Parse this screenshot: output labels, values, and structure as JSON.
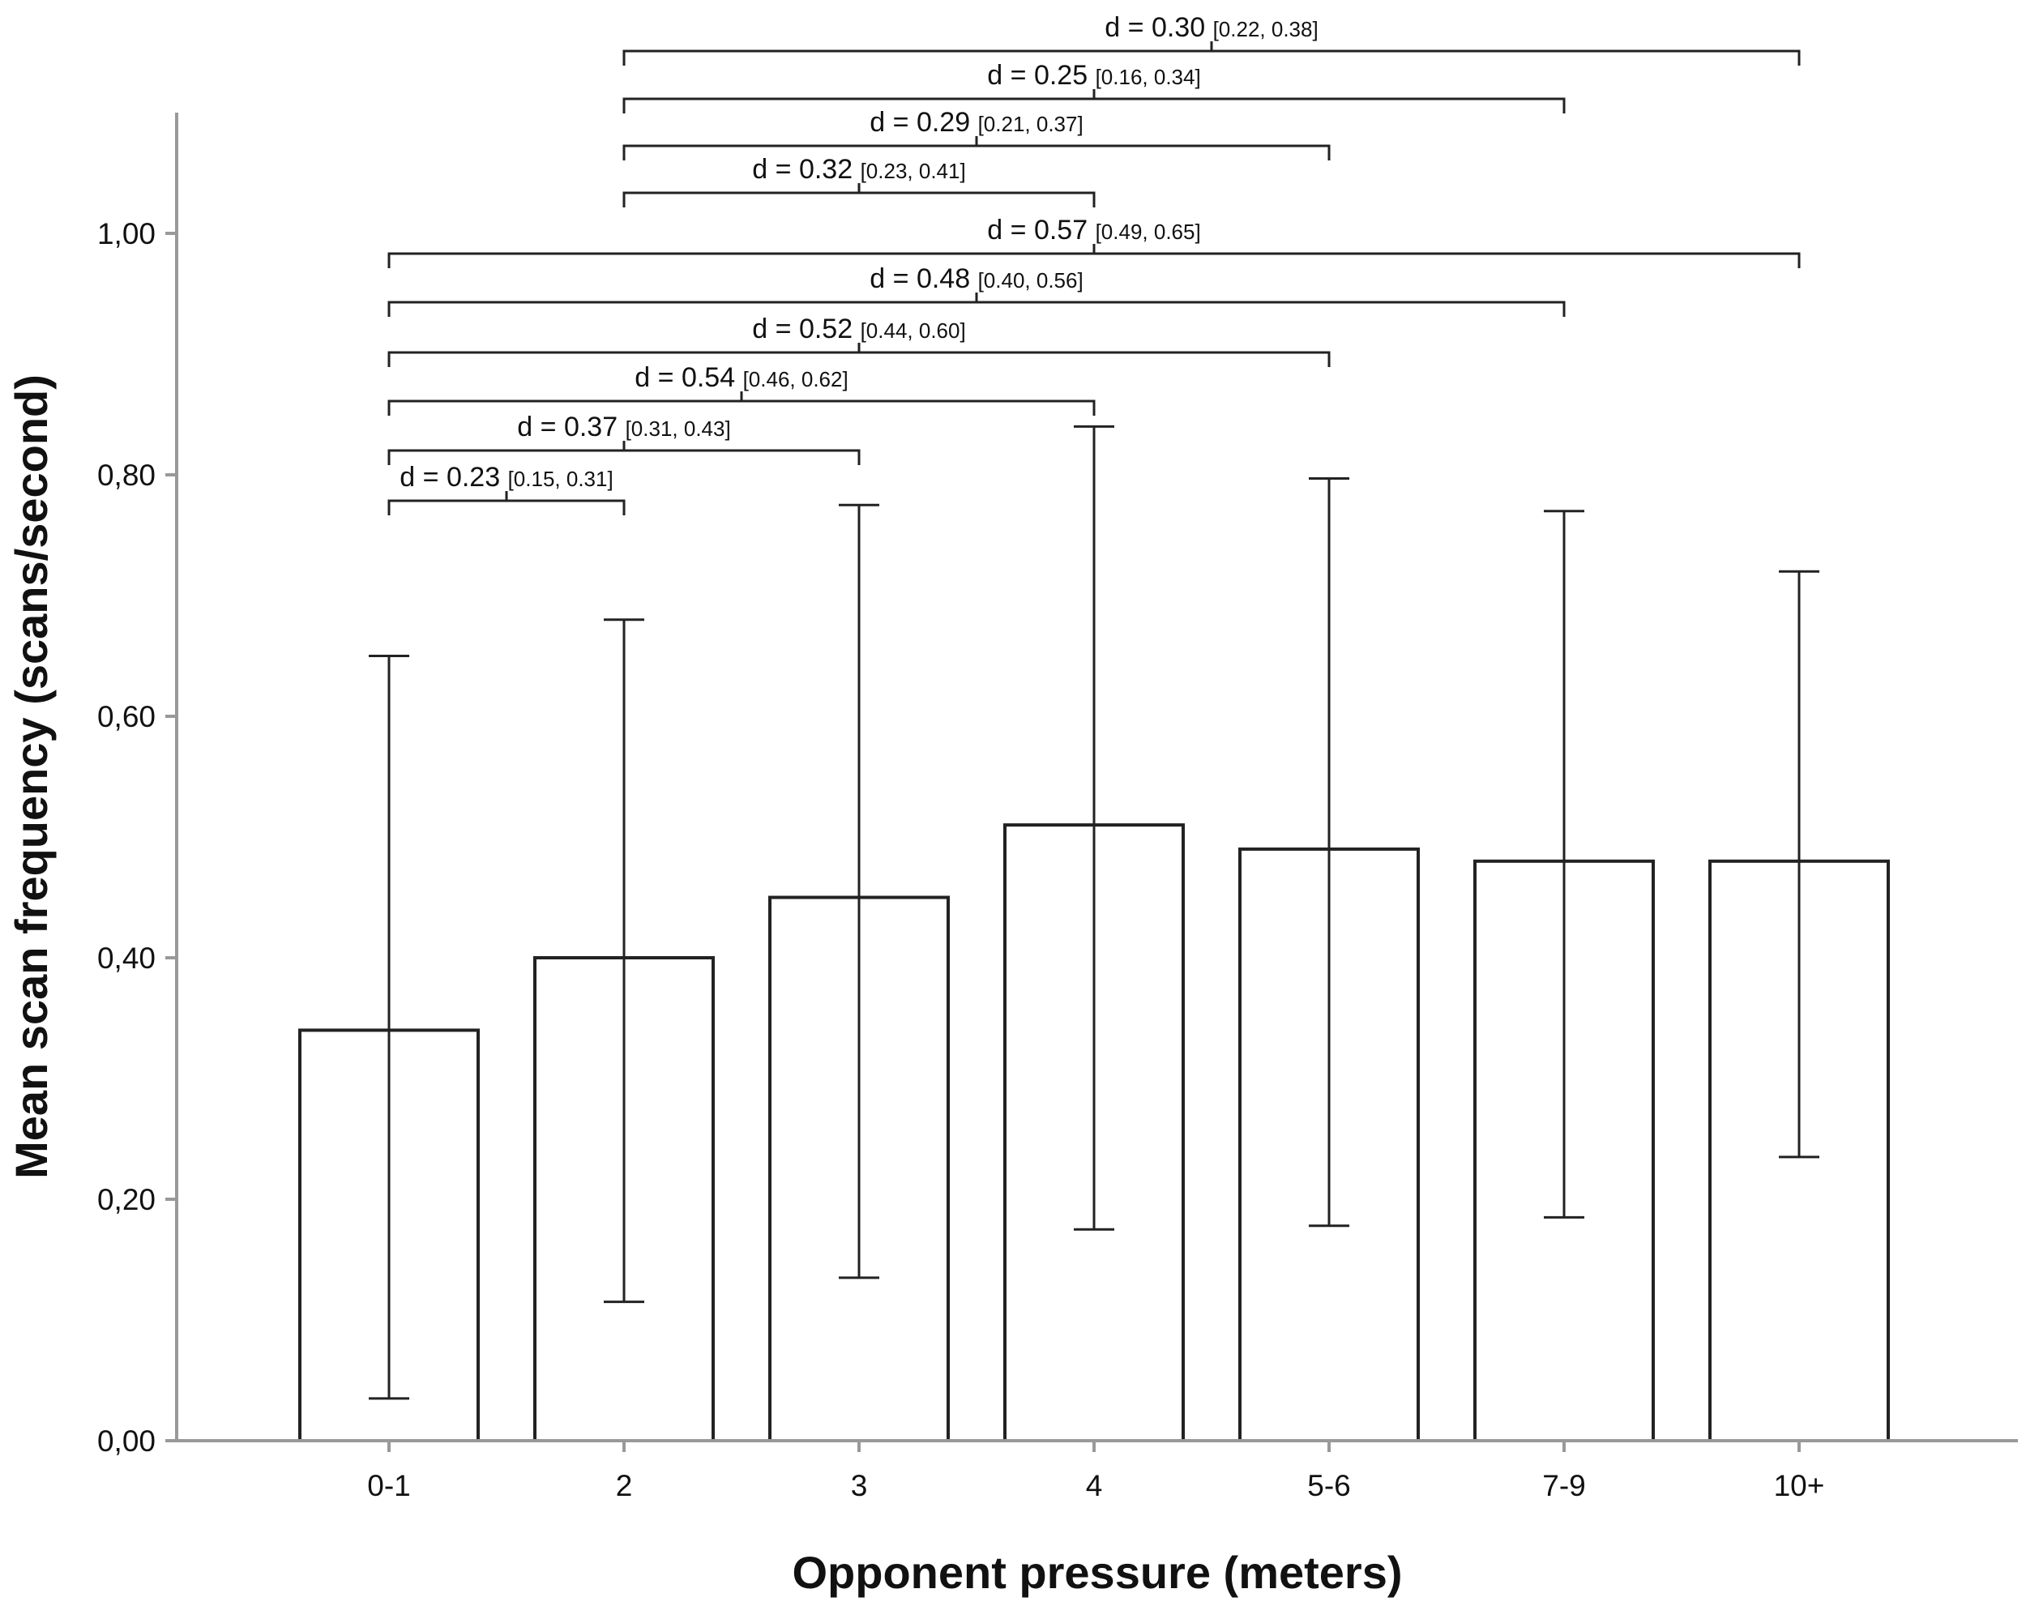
{
  "chart_data": {
    "type": "bar",
    "title": "",
    "xlabel": "Opponent pressure (meters)",
    "ylabel": "Mean scan frequency (scans/second)",
    "ylim": [
      0,
      1.1
    ],
    "ytick_values": [
      0,
      0.2,
      0.4,
      0.6,
      0.8,
      1.0
    ],
    "ytick_labels": [
      "0,00",
      "0,20",
      "0,40",
      "0,60",
      "0,80",
      "1,00"
    ],
    "categories": [
      "0-1",
      "2",
      "3",
      "4",
      "5-6",
      "7-9",
      "10+"
    ],
    "values": [
      0.34,
      0.4,
      0.45,
      0.51,
      0.49,
      0.48,
      0.48
    ],
    "error_low": [
      0.035,
      0.115,
      0.135,
      0.175,
      0.178,
      0.185,
      0.235
    ],
    "error_high": [
      0.65,
      0.68,
      0.775,
      0.84,
      0.797,
      0.77,
      0.72
    ],
    "bar_fill": "#ffffff",
    "bar_stroke": "#222222",
    "grid": false,
    "legend": "none",
    "annotations": [
      {
        "from": "0-1",
        "to": "2",
        "label": "d = 0.23",
        "ci": "[0.15, 0.31]"
      },
      {
        "from": "0-1",
        "to": "3",
        "label": "d = 0.37",
        "ci": "[0.31, 0.43]"
      },
      {
        "from": "0-1",
        "to": "4",
        "label": "d = 0.54",
        "ci": "[0.46, 0.62]"
      },
      {
        "from": "0-1",
        "to": "5-6",
        "label": "d = 0.52",
        "ci": "[0.44, 0.60]"
      },
      {
        "from": "0-1",
        "to": "7-9",
        "label": "d = 0.48",
        "ci": "[0.40, 0.56]"
      },
      {
        "from": "0-1",
        "to": "10+",
        "label": "d = 0.57",
        "ci": "[0.49, 0.65]"
      },
      {
        "from": "2",
        "to": "4",
        "label": "d = 0.32",
        "ci": "[0.23, 0.41]"
      },
      {
        "from": "2",
        "to": "5-6",
        "label": "d = 0.29",
        "ci": "[0.21, 0.37]"
      },
      {
        "from": "2",
        "to": "7-9",
        "label": "d = 0.25",
        "ci": "[0.16, 0.34]"
      },
      {
        "from": "2",
        "to": "10+",
        "label": "d = 0.30",
        "ci": "[0.22, 0.38]"
      }
    ]
  }
}
